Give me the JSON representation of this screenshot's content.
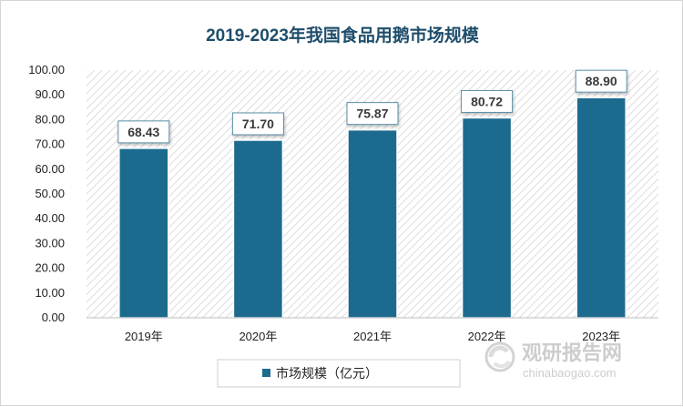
{
  "chart_data": {
    "type": "bar",
    "title": "2019-2023年我国食品用鹅市场规模",
    "categories": [
      "2019年",
      "2020年",
      "2021年",
      "2022年",
      "2023年"
    ],
    "series": [
      {
        "name": "市场规模（亿元）",
        "values": [
          68.43,
          71.7,
          75.87,
          80.72,
          88.9
        ],
        "color": "#1c6b8f"
      }
    ],
    "value_labels": [
      "68.43",
      "71.70",
      "75.87",
      "80.72",
      "88.90"
    ],
    "ylim": [
      0,
      100
    ],
    "yticks": [
      "0.00",
      "10.00",
      "20.00",
      "30.00",
      "40.00",
      "50.00",
      "60.00",
      "70.00",
      "80.00",
      "90.00",
      "100.00"
    ],
    "grid": "diagonal-hatch",
    "legend_position": "bottom"
  },
  "watermark": {
    "brand_cn": "观研报告网",
    "brand_en": "chinabaogao.com"
  },
  "colors": {
    "bar": "#1c6b8f",
    "title": "#1f4e6b"
  }
}
